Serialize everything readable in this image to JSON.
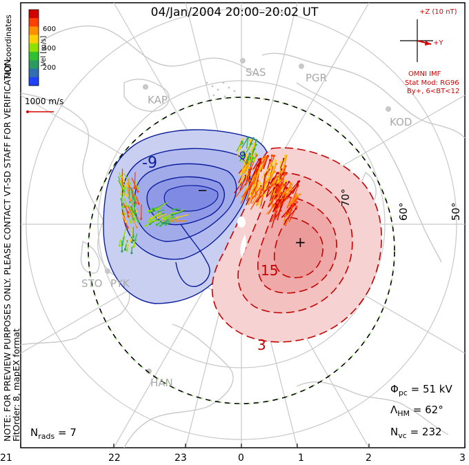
{
  "title": "04/Jan/2004  20:00–20:02  UT",
  "side_notes": {
    "mlt_coords": "MLT coordinates",
    "note": "NOTE: FOR PREVIEW PURPOSES ONLY. PLEASE CONTACT VT-SD STAFF FOR VERIFICATION.",
    "fit": "FitOrder: 8, mapEX format"
  },
  "velocity_scale": {
    "label": "Vel [m/s]",
    "ticks": [
      "600",
      "400",
      "200"
    ],
    "colors": [
      "#d40000",
      "#ff4000",
      "#ff9000",
      "#ffd000",
      "#90e000",
      "#30c030",
      "#2a9a60",
      "#3070b0",
      "#2040ff"
    ],
    "reference_vector": "1000 m/s"
  },
  "imf": {
    "axis_label": "+Z (10 nT)",
    "y_label": "+Y",
    "source": "OMNI IMF",
    "stat_mod": "Stat Mod: RG96",
    "condition": "By+, 6<BT<12"
  },
  "stations": [
    "KAP",
    "SAS",
    "PGR",
    "KOD",
    "STO",
    "PYK",
    "HAN"
  ],
  "latitude_labels": [
    "70°",
    "60°",
    "50°"
  ],
  "contour_labels": {
    "neg_outer": "-9",
    "neg_inner": "−",
    "pos_mid": "15",
    "pos_outer": "3",
    "pos_center": "+",
    "top_small": "9"
  },
  "stats": {
    "n_rads": "N",
    "n_rads_sub": "rads",
    "n_rads_val": " = 7",
    "phi_pc": "Φ",
    "phi_pc_sub": "pc",
    "phi_pc_val": " = 51 kV",
    "lambda_hm": "Λ",
    "lambda_hm_sub": "HM",
    "lambda_hm_val": " = 62°",
    "n_vc": "N",
    "n_vc_sub": "vc",
    "n_vc_val": " = 232"
  },
  "mlt_ticks": [
    "21",
    "22",
    "23",
    "0",
    "1",
    "2",
    "3"
  ],
  "colors": {
    "negative_fill": "#c9cff0",
    "negative_core": "#8f99e6",
    "negative_line": "#0a1c9c",
    "positive_fill": "#f7d2d2",
    "positive_core": "#f0a9a9",
    "positive_line": "#c40000",
    "map_outline": "#c8c8c8",
    "grid": "#c8c8c8"
  }
}
